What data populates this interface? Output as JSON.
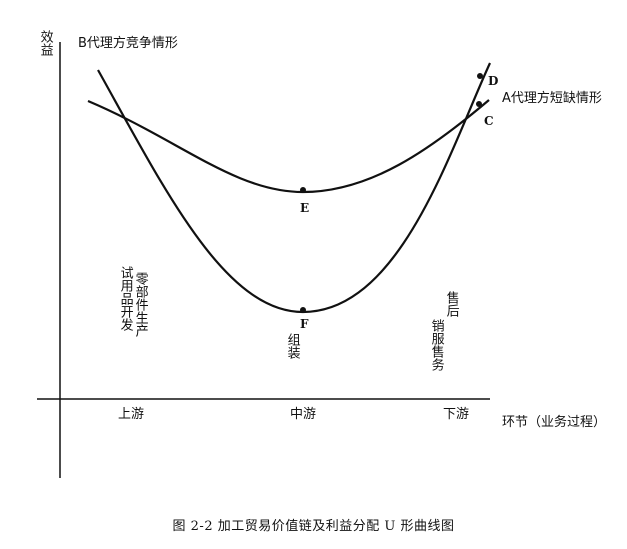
{
  "axes": {
    "y_label": "效益",
    "x_label": "环节（业务过程）",
    "x_ticks": [
      "上游",
      "中游",
      "下游"
    ]
  },
  "curves": {
    "b_label": "B代理方竞争情形",
    "a_label": "A代理方短缺情形"
  },
  "points": {
    "d": "D",
    "c": "C",
    "e": "E",
    "f": "F"
  },
  "activities": {
    "upstream_col1": "试用品开发",
    "upstream_col2": "零部件生产",
    "midstream": "组装",
    "downstream_col1": "售后",
    "downstream_col2": "销服售务"
  },
  "caption": "图 2-2  加工贸易价值链及利益分配 U 形曲线图",
  "colors": {
    "ink": "#111111",
    "background": "#ffffff"
  }
}
